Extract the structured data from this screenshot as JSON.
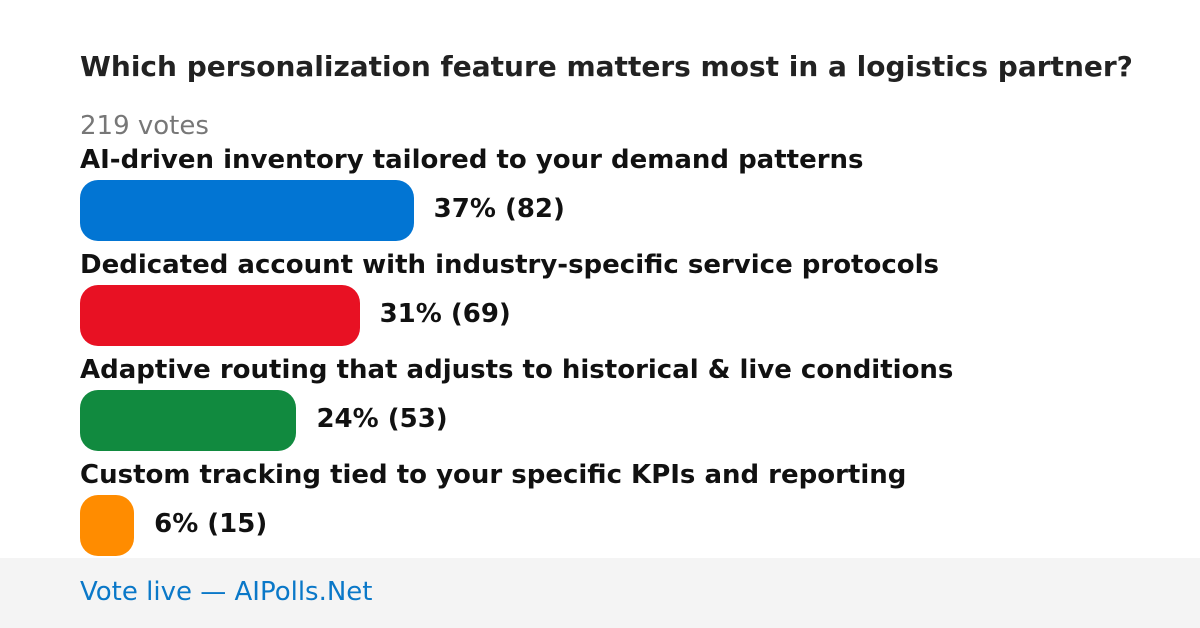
{
  "poll": {
    "question": "Which personalization feature matters most in a logistics partner?",
    "votes_text": "219 votes"
  },
  "chart_data": {
    "type": "bar",
    "orientation": "horizontal",
    "title": "Which personalization feature matters most in a logistics partner?",
    "subtitle": "219 votes",
    "categories": [
      "AI-driven inventory tailored to your demand patterns",
      "Dedicated account with industry-specific service protocols",
      "Adaptive routing that adjusts to historical & live conditions",
      "Custom tracking tied to your specific KPIs and reporting"
    ],
    "values": [
      37,
      31,
      24,
      6
    ],
    "counts": [
      82,
      69,
      53,
      15
    ],
    "value_labels": [
      "37% (82)",
      "31% (69)",
      "24% (53)",
      "6% (15)"
    ],
    "colors": [
      "#0275d3",
      "#e81123",
      "#118a3f",
      "#ff8c00"
    ],
    "xlabel": "",
    "ylabel": "",
    "grid": false
  },
  "footer": {
    "link_text": "Vote live — AIPolls.Net"
  }
}
